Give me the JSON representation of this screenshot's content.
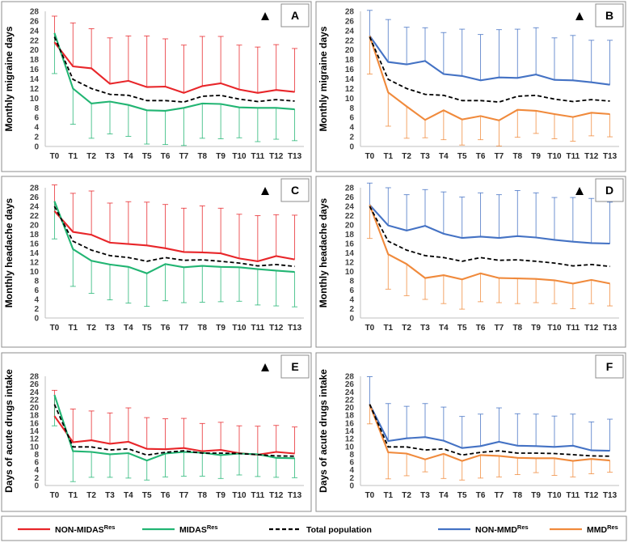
{
  "chart_data": [
    {
      "type": "line",
      "panel": "A",
      "marker": "▲",
      "title": "",
      "xlabel": "",
      "ylabel": "Monthly migraine days",
      "ylim": [
        0,
        28
      ],
      "categories": [
        "T0",
        "T1",
        "T2",
        "T3",
        "T4",
        "T5",
        "T6",
        "T7",
        "T8",
        "T9",
        "T10",
        "T11",
        "T12",
        "T13"
      ],
      "yticks": [
        0,
        2,
        4,
        6,
        8,
        10,
        12,
        14,
        16,
        18,
        20,
        22,
        24,
        26,
        28
      ],
      "series": [
        {
          "name": "NON-MIDAS Res",
          "color": "#e8262a",
          "dash": false,
          "err": "up",
          "values": [
            21.6,
            16.6,
            16.2,
            13.0,
            13.6,
            12.3,
            12.4,
            11.1,
            12.5,
            13.1,
            11.8,
            11.1,
            11.7,
            11.3
          ],
          "error": [
            5.4,
            9.0,
            8.2,
            9.5,
            9.3,
            10.6,
            9.9,
            9.9,
            10.3,
            9.7,
            9.2,
            9.5,
            9.4,
            9.0
          ]
        },
        {
          "name": "MIDAS Res",
          "color": "#22b573",
          "dash": false,
          "err": "down",
          "values": [
            23.5,
            12.0,
            8.9,
            9.3,
            8.6,
            7.5,
            7.4,
            8.0,
            8.9,
            8.8,
            8.1,
            8.0,
            8.0,
            7.7
          ],
          "error": [
            8.4,
            7.4,
            7.2,
            6.7,
            6.5,
            7.0,
            7.0,
            7.8,
            7.2,
            7.2,
            6.3,
            7.0,
            6.5,
            6.5
          ]
        },
        {
          "name": "Total population",
          "color": "#000000",
          "dash": true,
          "err": "none",
          "values": [
            22.7,
            13.9,
            12.0,
            10.8,
            10.6,
            9.5,
            9.5,
            9.2,
            10.4,
            10.6,
            9.8,
            9.3,
            9.7,
            9.4
          ],
          "error": [
            0,
            0,
            0,
            0,
            0,
            0,
            0,
            0,
            0,
            0,
            0,
            0,
            0,
            0
          ]
        }
      ]
    },
    {
      "type": "line",
      "panel": "B",
      "marker": "▲",
      "title": "",
      "xlabel": "",
      "ylabel": "Monthly migraine days",
      "ylim": [
        0,
        28
      ],
      "categories": [
        "T0",
        "T1",
        "T2",
        "T3",
        "T4",
        "T5",
        "T6",
        "T7",
        "T8",
        "T9",
        "T10",
        "T11",
        "T12",
        "T13"
      ],
      "yticks": [
        0,
        2,
        4,
        6,
        8,
        10,
        12,
        14,
        16,
        18,
        20,
        22,
        24,
        26,
        28
      ],
      "series": [
        {
          "name": "NON-MMD Res",
          "color": "#4472c4",
          "dash": false,
          "err": "up",
          "values": [
            22.9,
            17.5,
            17.0,
            17.7,
            15.0,
            14.6,
            13.7,
            14.3,
            14.2,
            14.9,
            13.8,
            13.7,
            13.3,
            12.8
          ],
          "error": [
            5.3,
            8.8,
            7.7,
            6.9,
            8.6,
            9.7,
            9.5,
            9.9,
            10.1,
            9.7,
            8.7,
            9.3,
            8.7,
            9.2
          ]
        },
        {
          "name": "MMD Res",
          "color": "#f08a3c",
          "dash": false,
          "err": "down",
          "values": [
            22.9,
            11.2,
            8.3,
            5.5,
            7.5,
            5.6,
            6.3,
            5.4,
            7.6,
            7.4,
            6.7,
            6.1,
            7.0,
            6.7
          ],
          "error": [
            7.9,
            7.0,
            6.6,
            3.7,
            6.1,
            5.3,
            4.9,
            5.3,
            5.7,
            4.7,
            5.1,
            5.0,
            4.8,
            4.7
          ]
        },
        {
          "name": "Total population",
          "color": "#000000",
          "dash": true,
          "err": "none",
          "values": [
            22.7,
            13.9,
            12.0,
            10.8,
            10.6,
            9.5,
            9.5,
            9.2,
            10.4,
            10.6,
            9.8,
            9.3,
            9.7,
            9.4
          ],
          "error": [
            0,
            0,
            0,
            0,
            0,
            0,
            0,
            0,
            0,
            0,
            0,
            0,
            0,
            0
          ]
        }
      ]
    },
    {
      "type": "line",
      "panel": "C",
      "marker": "▲",
      "title": "",
      "xlabel": "",
      "ylabel": "Monthly headache days",
      "ylim": [
        0,
        28
      ],
      "categories": [
        "T0",
        "T1",
        "T2",
        "T3",
        "T4",
        "T5",
        "T6",
        "T7",
        "T8",
        "T9",
        "T10",
        "T11",
        "T12",
        "T13"
      ],
      "yticks": [
        0,
        2,
        4,
        6,
        8,
        10,
        12,
        14,
        16,
        18,
        20,
        22,
        24,
        26,
        28
      ],
      "series": [
        {
          "name": "NON-MIDAS Res",
          "color": "#e8262a",
          "dash": false,
          "err": "up",
          "values": [
            23.0,
            18.5,
            17.9,
            16.2,
            15.9,
            15.6,
            15.0,
            14.2,
            14.1,
            13.9,
            12.8,
            12.2,
            13.3,
            12.6
          ],
          "error": [
            5.6,
            8.3,
            9.4,
            8.5,
            9.1,
            9.3,
            9.4,
            9.4,
            10.0,
            9.7,
            9.5,
            9.8,
            8.9,
            9.5
          ]
        },
        {
          "name": "MIDAS Res",
          "color": "#22b573",
          "dash": false,
          "err": "down",
          "values": [
            25.1,
            14.8,
            12.3,
            11.5,
            11.0,
            9.6,
            11.6,
            10.9,
            11.2,
            11.0,
            10.9,
            10.5,
            10.2,
            9.9
          ],
          "error": [
            8.1,
            8.0,
            7.0,
            7.6,
            7.8,
            7.1,
            7.9,
            7.6,
            7.8,
            7.5,
            7.3,
            7.7,
            7.6,
            7.5
          ]
        },
        {
          "name": "Total population",
          "color": "#000000",
          "dash": true,
          "err": "none",
          "values": [
            24.0,
            16.5,
            14.6,
            13.4,
            13.0,
            12.2,
            13.0,
            12.4,
            12.5,
            12.2,
            11.8,
            11.2,
            11.5,
            11.1
          ],
          "error": [
            0,
            0,
            0,
            0,
            0,
            0,
            0,
            0,
            0,
            0,
            0,
            0,
            0,
            0
          ]
        }
      ]
    },
    {
      "type": "line",
      "panel": "D",
      "marker": "▲",
      "title": "",
      "xlabel": "",
      "ylabel": "Monthly headache days",
      "ylim": [
        0,
        28
      ],
      "categories": [
        "T0",
        "T1",
        "T2",
        "T3",
        "T4",
        "T5",
        "T6",
        "T7",
        "T8",
        "T9",
        "T10",
        "T11",
        "T12",
        "T13"
      ],
      "yticks": [
        0,
        2,
        4,
        6,
        8,
        10,
        12,
        14,
        16,
        18,
        20,
        22,
        24,
        26,
        28
      ],
      "series": [
        {
          "name": "NON-MMD Res",
          "color": "#4472c4",
          "dash": false,
          "err": "up",
          "values": [
            24.3,
            19.9,
            18.8,
            19.8,
            18.1,
            17.2,
            17.5,
            17.2,
            17.6,
            17.3,
            16.8,
            16.4,
            16.1,
            16.0
          ],
          "error": [
            4.7,
            8.1,
            7.7,
            7.8,
            9.0,
            8.8,
            9.4,
            9.3,
            9.8,
            9.6,
            9.1,
            9.5,
            9.6,
            8.9
          ]
        },
        {
          "name": "MMD Res",
          "color": "#f08a3c",
          "dash": false,
          "err": "down",
          "values": [
            24.3,
            13.7,
            11.6,
            8.6,
            9.2,
            8.3,
            9.6,
            8.6,
            8.5,
            8.4,
            8.1,
            7.4,
            8.2,
            7.4
          ],
          "error": [
            7.2,
            7.5,
            6.8,
            4.6,
            6.1,
            6.4,
            6.1,
            5.3,
            5.4,
            5.1,
            5.0,
            5.4,
            5.1,
            4.8
          ]
        },
        {
          "name": "Total population",
          "color": "#000000",
          "dash": true,
          "err": "none",
          "values": [
            24.0,
            16.5,
            14.6,
            13.4,
            13.0,
            12.2,
            13.0,
            12.4,
            12.5,
            12.2,
            11.8,
            11.2,
            11.5,
            11.1
          ],
          "error": [
            0,
            0,
            0,
            0,
            0,
            0,
            0,
            0,
            0,
            0,
            0,
            0,
            0,
            0
          ]
        }
      ]
    },
    {
      "type": "line",
      "panel": "E",
      "marker": "▲",
      "title": "",
      "xlabel": "",
      "ylabel": "Days of acute drugs intake",
      "ylim": [
        0,
        28
      ],
      "categories": [
        "T0",
        "T1",
        "T2",
        "T3",
        "T4",
        "T5",
        "T6",
        "T7",
        "T8",
        "T9",
        "T10",
        "T11",
        "T12",
        "T13"
      ],
      "yticks": [
        0,
        2,
        4,
        6,
        8,
        10,
        12,
        14,
        16,
        18,
        20,
        22,
        24,
        26,
        28
      ],
      "series": [
        {
          "name": "NON-MIDAS Res",
          "color": "#e8262a",
          "dash": false,
          "err": "up",
          "values": [
            17.8,
            11.1,
            11.6,
            10.7,
            11.2,
            9.4,
            9.3,
            9.6,
            8.8,
            9.1,
            8.3,
            7.9,
            8.6,
            8.2
          ],
          "error": [
            6.6,
            8.5,
            7.5,
            7.9,
            8.7,
            8.0,
            7.8,
            7.6,
            7.1,
            7.1,
            7.0,
            7.3,
            6.8,
            6.8
          ]
        },
        {
          "name": "MIDAS Res",
          "color": "#22b573",
          "dash": false,
          "err": "down",
          "values": [
            23.2,
            8.8,
            8.6,
            8.0,
            8.3,
            6.4,
            8.2,
            8.6,
            8.4,
            7.8,
            8.2,
            8.0,
            7.1,
            7.0
          ],
          "error": [
            7.9,
            7.8,
            6.5,
            5.9,
            6.4,
            5.0,
            6.0,
            6.2,
            6.0,
            6.0,
            5.5,
            5.7,
            5.0,
            5.0
          ]
        },
        {
          "name": "Total population",
          "color": "#000000",
          "dash": true,
          "err": "none",
          "values": [
            20.8,
            9.9,
            9.9,
            9.1,
            9.4,
            7.8,
            8.5,
            8.9,
            8.3,
            8.3,
            8.2,
            7.9,
            7.6,
            7.5
          ],
          "error": [
            0,
            0,
            0,
            0,
            0,
            0,
            0,
            0,
            0,
            0,
            0,
            0,
            0,
            0
          ]
        }
      ]
    },
    {
      "type": "line",
      "panel": "F",
      "marker": "",
      "title": "",
      "xlabel": "",
      "ylabel": "Days of acute drugs intake",
      "ylim": [
        0,
        28
      ],
      "categories": [
        "T0",
        "T1",
        "T2",
        "T3",
        "T4",
        "T5",
        "T6",
        "T7",
        "T8",
        "T9",
        "T10",
        "T11",
        "T12",
        "T13"
      ],
      "yticks": [
        0,
        2,
        4,
        6,
        8,
        10,
        12,
        14,
        16,
        18,
        20,
        22,
        24,
        26,
        28
      ],
      "series": [
        {
          "name": "NON-MMD Res",
          "color": "#4472c4",
          "dash": false,
          "err": "up",
          "values": [
            20.8,
            11.4,
            12.1,
            12.4,
            11.5,
            9.6,
            10.1,
            11.2,
            10.2,
            10.1,
            9.9,
            10.2,
            9.0,
            8.9
          ],
          "error": [
            7.1,
            9.6,
            8.2,
            8.6,
            8.6,
            8.1,
            8.2,
            8.7,
            8.2,
            8.2,
            7.9,
            8.1,
            7.3,
            8.1
          ]
        },
        {
          "name": "MMD Res",
          "color": "#f08a3c",
          "dash": false,
          "err": "down",
          "values": [
            20.8,
            8.5,
            8.2,
            6.7,
            8.1,
            6.3,
            7.8,
            7.6,
            7.1,
            7.0,
            7.0,
            6.3,
            6.8,
            6.4
          ],
          "error": [
            5.0,
            6.8,
            5.7,
            3.2,
            6.3,
            4.9,
            5.9,
            5.4,
            4.3,
            3.7,
            4.4,
            4.1,
            3.8,
            3.0
          ]
        },
        {
          "name": "Total population",
          "color": "#000000",
          "dash": true,
          "err": "none",
          "values": [
            20.8,
            9.9,
            9.9,
            9.1,
            9.4,
            7.8,
            8.5,
            8.9,
            8.3,
            8.3,
            8.2,
            7.9,
            7.6,
            7.5
          ],
          "error": [
            0,
            0,
            0,
            0,
            0,
            0,
            0,
            0,
            0,
            0,
            0,
            0,
            0,
            0
          ]
        }
      ]
    }
  ],
  "legend": {
    "items": [
      {
        "name": "NON-MIDAS",
        "sup": "Res",
        "color": "#e8262a",
        "dash": false
      },
      {
        "name": "MIDAS",
        "sup": "Res",
        "color": "#22b573",
        "dash": false
      },
      {
        "name": "Total population",
        "sup": "",
        "color": "#000000",
        "dash": true
      },
      {
        "name": "NON-MMD",
        "sup": "Res",
        "color": "#4472c4",
        "dash": false
      },
      {
        "name": "MMD",
        "sup": "Res",
        "color": "#f08a3c",
        "dash": false
      }
    ]
  }
}
